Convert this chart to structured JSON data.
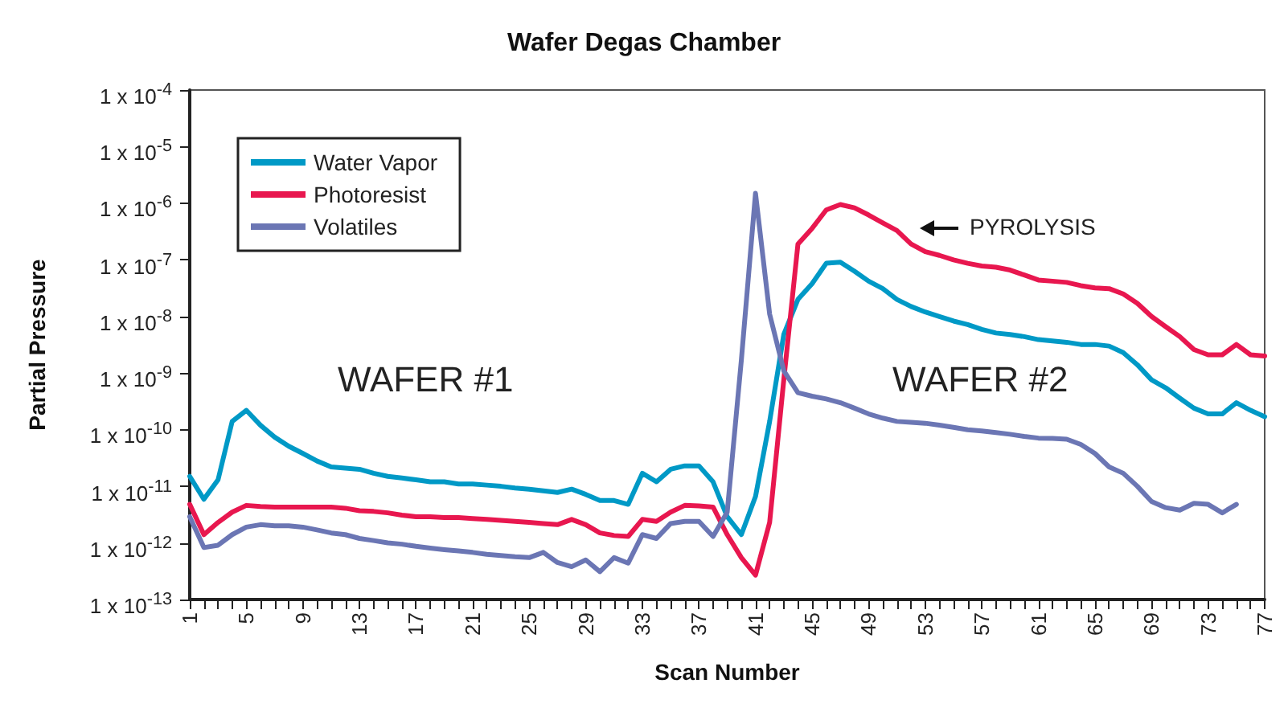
{
  "chart_data": {
    "type": "line",
    "title": "Wafer Degas Chamber",
    "xlabel": "Scan Number",
    "ylabel": "Partial Pressure",
    "log": "y",
    "grid": false,
    "legend": "top left",
    "marker": "none",
    "line_style": "solid",
    "x": [
      1,
      2,
      3,
      4,
      5,
      6,
      7,
      8,
      9,
      10,
      11,
      12,
      13,
      14,
      15,
      16,
      17,
      18,
      19,
      20,
      21,
      22,
      23,
      24,
      25,
      26,
      27,
      28,
      29,
      30,
      31,
      32,
      33,
      34,
      35,
      36,
      37,
      38,
      39,
      40,
      41,
      42,
      43,
      44,
      45,
      46,
      47,
      48,
      49,
      50,
      51,
      52,
      53,
      54,
      55,
      56,
      57,
      58,
      59,
      60,
      61,
      62,
      63,
      64,
      65,
      66,
      67,
      68,
      69,
      70,
      71,
      72,
      73,
      74,
      75,
      76,
      77
    ],
    "xlim": [
      1,
      77
    ],
    "xticks": [
      1,
      {
        "value": 2,
        "label": null
      },
      {
        "value": 3,
        "label": null
      },
      {
        "value": 4,
        "label": null
      },
      5,
      {
        "value": 6,
        "label": null
      },
      {
        "value": 7,
        "label": null
      },
      {
        "value": 8,
        "label": null
      },
      9,
      {
        "value": 10,
        "label": null
      },
      {
        "value": 11,
        "label": null
      },
      {
        "value": 12,
        "label": null
      },
      13,
      {
        "value": 14,
        "label": null
      },
      {
        "value": 15,
        "label": null
      },
      {
        "value": 16,
        "label": null
      },
      17,
      {
        "value": 18,
        "label": null
      },
      {
        "value": 19,
        "label": null
      },
      {
        "value": 20,
        "label": null
      },
      21,
      {
        "value": 22,
        "label": null
      },
      {
        "value": 23,
        "label": null
      },
      {
        "value": 24,
        "label": null
      },
      25,
      {
        "value": 26,
        "label": null
      },
      {
        "value": 27,
        "label": null
      },
      {
        "value": 28,
        "label": null
      },
      29,
      {
        "value": 30,
        "label": null
      },
      {
        "value": 31,
        "label": null
      },
      {
        "value": 32,
        "label": null
      },
      33,
      {
        "value": 34,
        "label": null
      },
      {
        "value": 35,
        "label": null
      },
      {
        "value": 36,
        "label": null
      },
      37,
      {
        "value": 38,
        "label": null
      },
      {
        "value": 39,
        "label": null
      },
      {
        "value": 40,
        "label": null
      },
      41,
      {
        "value": 42,
        "label": null
      },
      {
        "value": 43,
        "label": null
      },
      {
        "value": 44,
        "label": null
      },
      45,
      {
        "value": 46,
        "label": null
      },
      {
        "value": 47,
        "label": null
      },
      {
        "value": 48,
        "label": null
      },
      49,
      {
        "value": 50,
        "label": null
      },
      {
        "value": 51,
        "label": null
      },
      {
        "value": 52,
        "label": null
      },
      53,
      {
        "value": 54,
        "label": null
      },
      {
        "value": 55,
        "label": null
      },
      {
        "value": 56,
        "label": null
      },
      57,
      {
        "value": 58,
        "label": null
      },
      {
        "value": 59,
        "label": null
      },
      {
        "value": 60,
        "label": null
      },
      61,
      {
        "value": 62,
        "label": null
      },
      {
        "value": 63,
        "label": null
      },
      {
        "value": 64,
        "label": null
      },
      65,
      {
        "value": 66,
        "label": null
      },
      {
        "value": 67,
        "label": null
      },
      {
        "value": 68,
        "label": null
      },
      69,
      {
        "value": 70,
        "label": null
      },
      {
        "value": 71,
        "label": null
      },
      {
        "value": 72,
        "label": null
      },
      73,
      {
        "value": 74,
        "label": null
      },
      {
        "value": 75,
        "label": null
      },
      {
        "value": 76,
        "label": null
      },
      77
    ],
    "ylim": [
      1e-13,
      0.0001
    ],
    "yticks": [
      {
        "value": 1e-13,
        "label": "1 x 10$^{-13}$"
      },
      {
        "value": 1e-12,
        "label": "1 x 10$^{-12}$"
      },
      {
        "value": 1e-11,
        "label": "1 x 10$^{-11}$"
      },
      {
        "value": 1e-10,
        "label": "1 x 10$^{-10}$"
      },
      {
        "value": 1e-09,
        "label": "1 x 10$^{-9}$"
      },
      {
        "value": 1e-08,
        "label": "1 x 10$^{-8}$"
      },
      {
        "value": 1e-07,
        "label": "1 x 10$^{-7}$"
      },
      {
        "value": 1e-06,
        "label": "1 x 10$^{-6}$"
      },
      {
        "value": 1e-05,
        "label": "1 x 10$^{-5}$"
      },
      {
        "value": 0.0001,
        "label": "1 x 10$^{-4}$"
      }
    ],
    "annotations": [
      "WAFER #1",
      "WAFER #2",
      "PYROLYSIS"
    ],
    "series": [
      {
        "name": "Water Vapor",
        "color": "#0099c6",
        "values": [
          1.5e-11,
          5.9e-12,
          1.3e-11,
          1.4e-10,
          2.2e-10,
          1.2e-10,
          7.4e-11,
          5.1e-11,
          3.8e-11,
          2.8e-11,
          2.2e-11,
          2.1e-11,
          2e-11,
          1.7e-11,
          1.5e-11,
          1.4e-11,
          1.3e-11,
          1.2e-11,
          1.2e-11,
          1.1e-11,
          1.1e-11,
          1.05e-11,
          1e-11,
          9.3e-12,
          8.9e-12,
          8.3e-12,
          7.8e-12,
          8.9e-12,
          7.2e-12,
          5.6e-12,
          5.6e-12,
          4.8e-12,
          1.7e-11,
          1.2e-11,
          2e-11,
          2.3e-11,
          2.3e-11,
          1.2e-11,
          2.9e-12,
          1.4e-12,
          6.6e-12,
          1.4e-10,
          4.8e-09,
          2e-08,
          3.8e-08,
          8.7e-08,
          9.1e-08,
          6.3e-08,
          4.2e-08,
          3.1e-08,
          2e-08,
          1.5e-08,
          1.2e-08,
          1e-08,
          8.3e-09,
          7.2e-09,
          5.9e-09,
          5.1e-09,
          4.8e-09,
          4.4e-09,
          3.9e-09,
          3.7e-09,
          3.5e-09,
          3.2e-09,
          3.2e-09,
          3e-09,
          2.3e-09,
          1.4e-09,
          7.6e-10,
          5.5e-10,
          3.6e-10,
          2.4e-10,
          1.9e-10,
          1.9e-10,
          3e-10,
          2.2e-10,
          1.7e-10
        ]
      },
      {
        "name": "Photoresist",
        "color": "#e8174f",
        "values": [
          4.8e-12,
          1.4e-12,
          2.3e-12,
          3.5e-12,
          4.6e-12,
          4.4e-12,
          4.3e-12,
          4.3e-12,
          4.3e-12,
          4.3e-12,
          4.3e-12,
          4.1e-12,
          3.7e-12,
          3.6e-12,
          3.4e-12,
          3.1e-12,
          2.9e-12,
          2.9e-12,
          2.8e-12,
          2.8e-12,
          2.7e-12,
          2.6e-12,
          2.5e-12,
          2.4e-12,
          2.3e-12,
          2.2e-12,
          2.1e-12,
          2.6e-12,
          2.1e-12,
          1.5e-12,
          1.35e-12,
          1.3e-12,
          2.6e-12,
          2.4e-12,
          3.5e-12,
          4.6e-12,
          4.5e-12,
          4.3e-12,
          1.4e-12,
          5.5e-13,
          2.7e-13,
          2.3e-12,
          7.6e-10,
          1.9e-07,
          3.6e-07,
          7.6e-07,
          9.5e-07,
          8.3e-07,
          6.2e-07,
          4.5e-07,
          3.3e-07,
          1.9e-07,
          1.4e-07,
          1.2e-07,
          1e-07,
          8.7e-08,
          7.8e-08,
          7.4e-08,
          6.6e-08,
          5.4e-08,
          4.4e-08,
          4.2e-08,
          4e-08,
          3.5e-08,
          3.2e-08,
          3.1e-08,
          2.5e-08,
          1.7e-08,
          1e-08,
          6.6e-09,
          4.4e-09,
          2.6e-09,
          2.1e-09,
          2.1e-09,
          3.2e-09,
          2.1e-09,
          2e-09
        ]
      },
      {
        "name": "Volatiles",
        "color": "#6b76b4",
        "values": [
          2.9e-12,
          8.3e-13,
          9.1e-13,
          1.4e-12,
          1.9e-12,
          2.1e-12,
          2e-12,
          2e-12,
          1.9e-12,
          1.7e-12,
          1.5e-12,
          1.4e-12,
          1.2e-12,
          1.1e-12,
          1e-12,
          9.5e-13,
          8.7e-13,
          8.1e-13,
          7.6e-13,
          7.2e-13,
          6.8e-13,
          6.3e-13,
          6e-13,
          5.7e-13,
          5.5e-13,
          6.8e-13,
          4.5e-13,
          3.8e-13,
          5e-13,
          3.1e-13,
          5.5e-13,
          4.4e-13,
          1.4e-12,
          1.2e-12,
          2.2e-12,
          2.4e-12,
          2.4e-12,
          1.3e-12,
          3.5e-12,
          1.7e-09,
          1.5e-06,
          1.1e-08,
          1.1e-09,
          4.5e-10,
          3.9e-10,
          3.5e-10,
          3e-10,
          2.4e-10,
          1.9e-10,
          1.6e-10,
          1.4e-10,
          1.35e-10,
          1.3e-10,
          1.2e-10,
          1.1e-10,
          1e-10,
          9.5e-11,
          8.9e-11,
          8.3e-11,
          7.6e-11,
          7.1e-11,
          7e-11,
          6.8e-11,
          5.5e-11,
          3.8e-11,
          2.2e-11,
          1.7e-11,
          1e-11,
          5.4e-12,
          4.2e-12,
          3.8e-12,
          5e-12,
          4.8e-12,
          3.4e-12,
          4.8e-12,
          null,
          null
        ]
      }
    ]
  }
}
